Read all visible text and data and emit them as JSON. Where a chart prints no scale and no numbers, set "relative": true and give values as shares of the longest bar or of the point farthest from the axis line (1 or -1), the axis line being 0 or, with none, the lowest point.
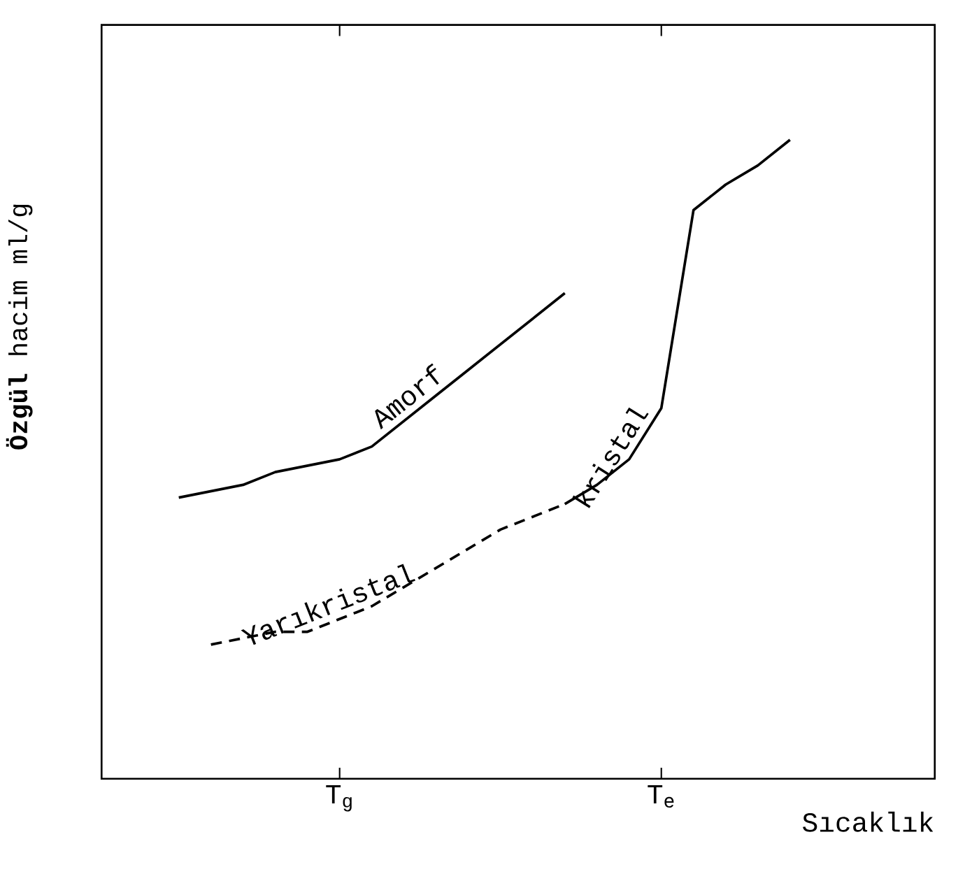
{
  "chart_data": {
    "type": "line",
    "relative": true,
    "xlabel": "Sıcaklık",
    "ylabel": "**Özgül** hacim ml/g",
    "categories": [
      null,
      null,
      null,
      null,
      null,
      null,
      null,
      "T$_{g}$",
      null,
      null,
      null,
      null,
      null,
      null,
      null,
      null,
      null,
      "T$_{e}$",
      null,
      null,
      null,
      null,
      null,
      null,
      null,
      null
    ],
    "grid": false,
    "legend": false,
    "marker": "none",
    "series": [
      {
        "name": "Amorf",
        "color": "#000000",
        "line_style": "solid",
        "values": [
          null,
          null,
          0.44,
          0.45,
          0.46,
          0.48,
          0.49,
          0.5,
          0.52,
          0.56,
          0.6,
          0.64,
          0.68,
          0.72,
          0.76,
          null,
          null,
          null,
          null,
          null,
          null,
          null,
          null,
          null,
          null,
          null
        ]
      },
      {
        "name": "Yarıkristal",
        "color": "#000000",
        "line_style": "dashed",
        "values": [
          null,
          null,
          null,
          0.21,
          0.22,
          0.23,
          0.23,
          0.25,
          0.27,
          0.3,
          0.33,
          0.36,
          0.39,
          0.41,
          0.43,
          null,
          null,
          null,
          null,
          null,
          null,
          null,
          null,
          null,
          null,
          null
        ]
      },
      {
        "name": "kristal",
        "color": "#000000",
        "line_style": "solid",
        "values": [
          null,
          null,
          null,
          null,
          null,
          null,
          null,
          null,
          null,
          null,
          null,
          null,
          null,
          null,
          0.43,
          0.46,
          0.5,
          0.58,
          0.89,
          0.93,
          0.96,
          1.0,
          null,
          null,
          null,
          null
        ]
      }
    ]
  }
}
